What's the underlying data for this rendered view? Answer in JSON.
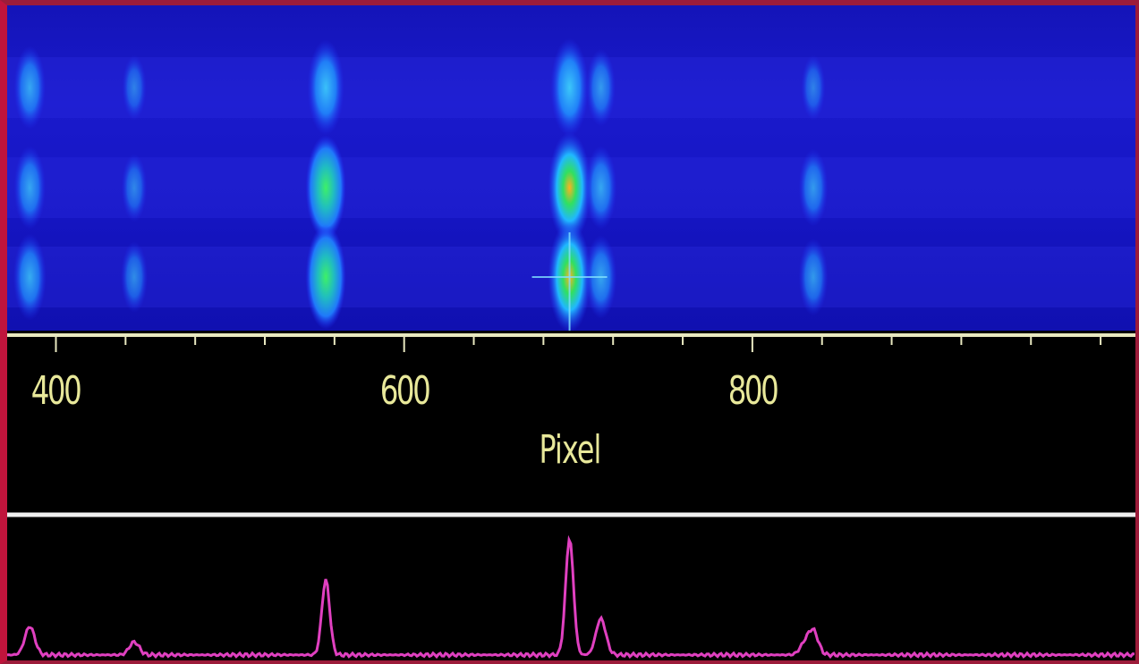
{
  "axis": {
    "title": "Pixel",
    "range": [
      372,
      1020
    ],
    "major_ticks": [
      400,
      600,
      800
    ],
    "major_tick_labels": [
      "400",
      "600",
      "800"
    ],
    "minor_tick_step": 40
  },
  "colors": {
    "frame": "#c0143c",
    "image_background": "#1616c4",
    "axis_line": "#e8e8c0",
    "axis_text": "#e8e89a",
    "divider": "#f0f0f0",
    "profile_line": "#e040c0"
  },
  "emission_lines": [
    {
      "pixel": 385,
      "rows": [
        0.55,
        0.55,
        0.6
      ]
    },
    {
      "pixel": 445,
      "rows": [
        0.25,
        0.3,
        0.35
      ]
    },
    {
      "pixel": 555,
      "rows": [
        0.75,
        0.9,
        0.9
      ]
    },
    {
      "pixel": 695,
      "rows": [
        0.8,
        1.0,
        1.0
      ]
    },
    {
      "pixel": 713,
      "rows": [
        0.45,
        0.55,
        0.55
      ]
    },
    {
      "pixel": 835,
      "rows": [
        0.25,
        0.45,
        0.45
      ]
    }
  ],
  "cursor": {
    "pixel": 695,
    "row": 2
  },
  "profile": {
    "peaks": [
      {
        "pixel": 385,
        "height": 0.22
      },
      {
        "pixel": 445,
        "height": 0.1
      },
      {
        "pixel": 555,
        "height": 0.58
      },
      {
        "pixel": 695,
        "height": 0.9
      },
      {
        "pixel": 713,
        "height": 0.28
      },
      {
        "pixel": 830,
        "height": 0.08
      },
      {
        "pixel": 835,
        "height": 0.18
      }
    ]
  }
}
